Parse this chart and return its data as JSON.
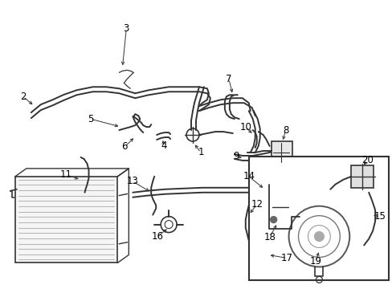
{
  "bg_color": "#ffffff",
  "line_color": "#333333",
  "label_color": "#000000",
  "fig_width": 4.89,
  "fig_height": 3.6,
  "dpi": 100,
  "lw_tube": 1.4,
  "lw_thin": 0.9,
  "lw_arrow": 0.7,
  "fontsize": 8.5
}
